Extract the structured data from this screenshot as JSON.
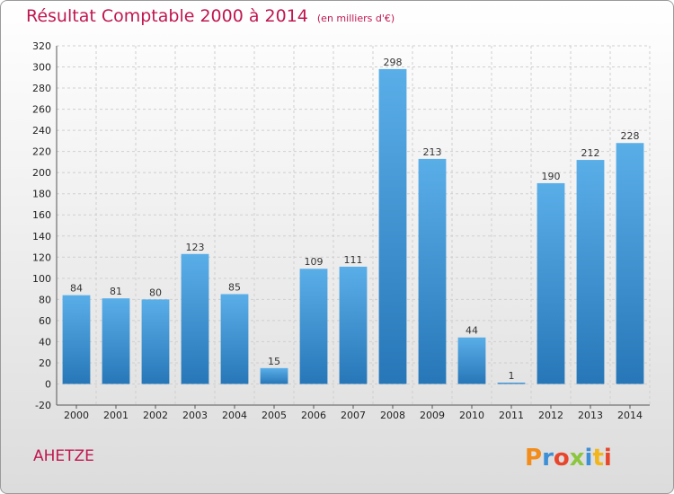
{
  "title": "Résultat Comptable 2000 à 2014",
  "subtitle": "(en milliers d'€)",
  "commune": "AHETZE",
  "logo_text": "Proxiti",
  "colors": {
    "title": "#c0174f",
    "bar_top": "#5aaee8",
    "bar_bottom": "#2777b8",
    "grid": "#cfcfcf"
  },
  "chart_data": {
    "type": "bar",
    "title": "Résultat Comptable 2000 à 2014",
    "subtitle": "(en milliers d'€)",
    "categories": [
      "2000",
      "2001",
      "2002",
      "2003",
      "2004",
      "2005",
      "2006",
      "2007",
      "2008",
      "2009",
      "2010",
      "2011",
      "2012",
      "2013",
      "2014"
    ],
    "values": [
      84,
      81,
      80,
      123,
      85,
      15,
      109,
      111,
      298,
      213,
      44,
      1,
      190,
      212,
      228
    ],
    "ylim": [
      -20,
      320
    ],
    "yticks": [
      -20,
      0,
      20,
      40,
      60,
      80,
      100,
      120,
      140,
      160,
      180,
      200,
      220,
      240,
      260,
      280,
      300,
      320
    ],
    "grid": true
  }
}
